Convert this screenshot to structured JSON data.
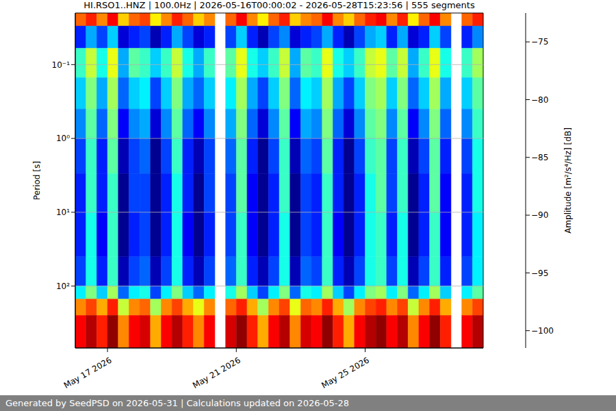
{
  "chart_data": {
    "type": "heatmap",
    "title": "HI.RSO1..HNZ | 100.0Hz | 2026-05-16T00:00:02 - 2026-05-28T15:23:56 | 555 segments",
    "ylabel": "Period [s]",
    "footer": "Generated by SeedPSD on 2026-05-31 | Calculations updated on 2026-05-28",
    "log": "y",
    "grid": true,
    "xlim": [
      "2026-05-16T00:00",
      "2026-05-28T16:00"
    ],
    "xticks": [
      {
        "value": "2026-05-17T00:00",
        "label": "May 17 2026"
      },
      {
        "value": "2026-05-21T00:00",
        "label": "May 21 2026"
      },
      {
        "value": "2026-05-25T00:00",
        "label": "May 25 2026"
      }
    ],
    "ylim": [
      0.02,
      690
    ],
    "yticks": [
      {
        "value": 0.1,
        "label": "10⁻¹"
      },
      {
        "value": 1,
        "label": "10⁰"
      },
      {
        "value": 10,
        "label": "10¹"
      },
      {
        "value": 100,
        "label": "10²"
      }
    ],
    "x_edges": [
      "2026-05-16T00:00",
      "2026-05-16T08:00",
      "2026-05-16T16:00",
      "2026-05-17T00:00",
      "2026-05-17T08:00",
      "2026-05-17T16:00",
      "2026-05-18T00:00",
      "2026-05-18T08:00",
      "2026-05-18T16:00",
      "2026-05-19T00:00",
      "2026-05-19T08:00",
      "2026-05-19T16:00",
      "2026-05-20T00:00",
      "2026-05-20T08:00",
      "2026-05-20T16:00",
      "2026-05-21T00:00",
      "2026-05-21T08:00",
      "2026-05-21T16:00",
      "2026-05-22T00:00",
      "2026-05-22T08:00",
      "2026-05-22T16:00",
      "2026-05-23T00:00",
      "2026-05-23T08:00",
      "2026-05-23T16:00",
      "2026-05-24T00:00",
      "2026-05-24T08:00",
      "2026-05-24T16:00",
      "2026-05-25T00:00",
      "2026-05-25T08:00",
      "2026-05-25T16:00",
      "2026-05-26T00:00",
      "2026-05-26T08:00",
      "2026-05-26T16:00",
      "2026-05-27T00:00",
      "2026-05-27T08:00",
      "2026-05-27T16:00",
      "2026-05-28T00:00",
      "2026-05-28T08:00",
      "2026-05-28T16:00"
    ],
    "y_edges": [
      0.02,
      0.03,
      0.06,
      0.15,
      0.4,
      1,
      3,
      10,
      40,
      100,
      150,
      250,
      690
    ],
    "cells": [
      [
        -79,
        -77,
        -80,
        -76,
        -82,
        -79,
        -78,
        -83,
        -80,
        -77,
        -79,
        -82,
        -80,
        null,
        -79,
        -76,
        -80,
        -83,
        -79,
        -77,
        -82,
        -80,
        -79,
        -76,
        -80,
        -82,
        -79,
        -77,
        -76,
        -80,
        -77,
        -83,
        -79,
        -76,
        -80,
        null,
        -79,
        -77
      ],
      [
        -97,
        -93,
        -96,
        -92,
        -99,
        -97,
        -96,
        -100,
        -97,
        -93,
        -96,
        -99,
        -97,
        null,
        -96,
        -92,
        -97,
        -100,
        -96,
        -94,
        -99,
        -97,
        -96,
        -93,
        -97,
        -100,
        -96,
        -93,
        -92,
        -97,
        -93,
        -99,
        -97,
        -92,
        -96,
        null,
        -97,
        -94
      ],
      [
        -89,
        -85,
        -90,
        -84,
        -93,
        -88,
        -89,
        -92,
        -89,
        -85,
        -90,
        -93,
        -89,
        null,
        -88,
        -84,
        -90,
        -92,
        -89,
        -85,
        -93,
        -88,
        -89,
        -84,
        -90,
        -92,
        -89,
        -85,
        -84,
        -88,
        -85,
        -93,
        -89,
        -84,
        -90,
        null,
        -89,
        -86
      ],
      [
        -92,
        -87,
        -93,
        -86,
        -95,
        -92,
        -91,
        -96,
        -92,
        -87,
        -93,
        -95,
        -92,
        null,
        -91,
        -86,
        -93,
        -96,
        -92,
        -87,
        -95,
        -91,
        -92,
        -86,
        -93,
        -96,
        -92,
        -87,
        -86,
        -92,
        -87,
        -95,
        -92,
        -86,
        -93,
        null,
        -92,
        -88
      ],
      [
        -94,
        -88,
        -95,
        -87,
        -98,
        -94,
        -93,
        -99,
        -94,
        -88,
        -95,
        -98,
        -94,
        null,
        -93,
        -87,
        -95,
        -99,
        -94,
        -88,
        -98,
        -93,
        -94,
        -87,
        -95,
        -99,
        -94,
        -88,
        -87,
        -94,
        -88,
        -98,
        -94,
        -87,
        -95,
        null,
        -94,
        -89
      ],
      [
        -96,
        -89,
        -97,
        -88,
        -100,
        -96,
        -95,
        -101,
        -96,
        -89,
        -97,
        -100,
        -96,
        null,
        -95,
        -88,
        -97,
        -101,
        -96,
        -89,
        -100,
        -95,
        -96,
        -88,
        -97,
        -101,
        -96,
        -89,
        -88,
        -96,
        -89,
        -100,
        -96,
        -88,
        -97,
        null,
        -96,
        -90
      ],
      [
        -97,
        -89,
        -97,
        -89,
        -101,
        -96,
        -96,
        -101,
        -97,
        -90,
        -97,
        -101,
        -96,
        null,
        -96,
        -88,
        -98,
        -101,
        -97,
        -89,
        -101,
        -96,
        -97,
        -89,
        -97,
        -101,
        -97,
        -90,
        -88,
        -96,
        -89,
        -101,
        -97,
        -88,
        -98,
        null,
        -97,
        -90
      ],
      [
        -97,
        -90,
        -98,
        -89,
        -101,
        -97,
        -96,
        -101,
        -97,
        -90,
        -98,
        -101,
        -97,
        null,
        -96,
        -89,
        -98,
        -101,
        -97,
        -90,
        -101,
        -96,
        -97,
        -89,
        -98,
        -101,
        -97,
        -90,
        -89,
        -97,
        -90,
        -101,
        -97,
        -89,
        -98,
        null,
        -97,
        -91
      ],
      [
        -96,
        -90,
        -97,
        -89,
        -100,
        -96,
        -95,
        -100,
        -96,
        -90,
        -97,
        -100,
        -96,
        null,
        -95,
        -89,
        -97,
        -100,
        -96,
        -90,
        -100,
        -95,
        -96,
        -89,
        -97,
        -100,
        -96,
        -90,
        -89,
        -96,
        -90,
        -100,
        -96,
        -89,
        -97,
        null,
        -96,
        -91
      ],
      [
        -91,
        -87,
        -92,
        -86,
        -95,
        -91,
        -90,
        -96,
        -91,
        -87,
        -92,
        -95,
        -91,
        null,
        -90,
        -86,
        -92,
        -96,
        -91,
        -87,
        -95,
        -90,
        -91,
        -86,
        -92,
        -96,
        -91,
        -87,
        -86,
        -91,
        -87,
        -95,
        -91,
        -86,
        -92,
        null,
        -91,
        -88
      ],
      [
        -80,
        -78,
        -81,
        -77,
        -85,
        -80,
        -79,
        -86,
        -80,
        -78,
        -81,
        -84,
        -80,
        null,
        -79,
        -77,
        -81,
        -86,
        -80,
        -78,
        -84,
        -79,
        -80,
        -77,
        -81,
        -86,
        -80,
        -78,
        -77,
        -80,
        -78,
        -85,
        -80,
        -77,
        -81,
        null,
        -80,
        -78
      ],
      [
        -76,
        -74,
        -77,
        -73,
        -80,
        -76,
        -75,
        -81,
        -76,
        -74,
        -77,
        -80,
        -76,
        null,
        -75,
        -73,
        -77,
        -81,
        -76,
        -74,
        -80,
        -75,
        -76,
        -73,
        -77,
        -81,
        -76,
        -74,
        -73,
        -76,
        -74,
        -80,
        -76,
        -73,
        -77,
        null,
        -76,
        -74
      ]
    ],
    "colorbar": {
      "label": "Amplitude [m²/s⁴/Hz] [dB]",
      "range": [
        -101.5,
        -72.5
      ],
      "ticks": [
        {
          "value": -100,
          "label": "−100"
        },
        {
          "value": -95,
          "label": "−95"
        },
        {
          "value": -90,
          "label": "−90"
        },
        {
          "value": -85,
          "label": "−85"
        },
        {
          "value": -80,
          "label": "−80"
        },
        {
          "value": -75,
          "label": "−75"
        }
      ]
    }
  }
}
